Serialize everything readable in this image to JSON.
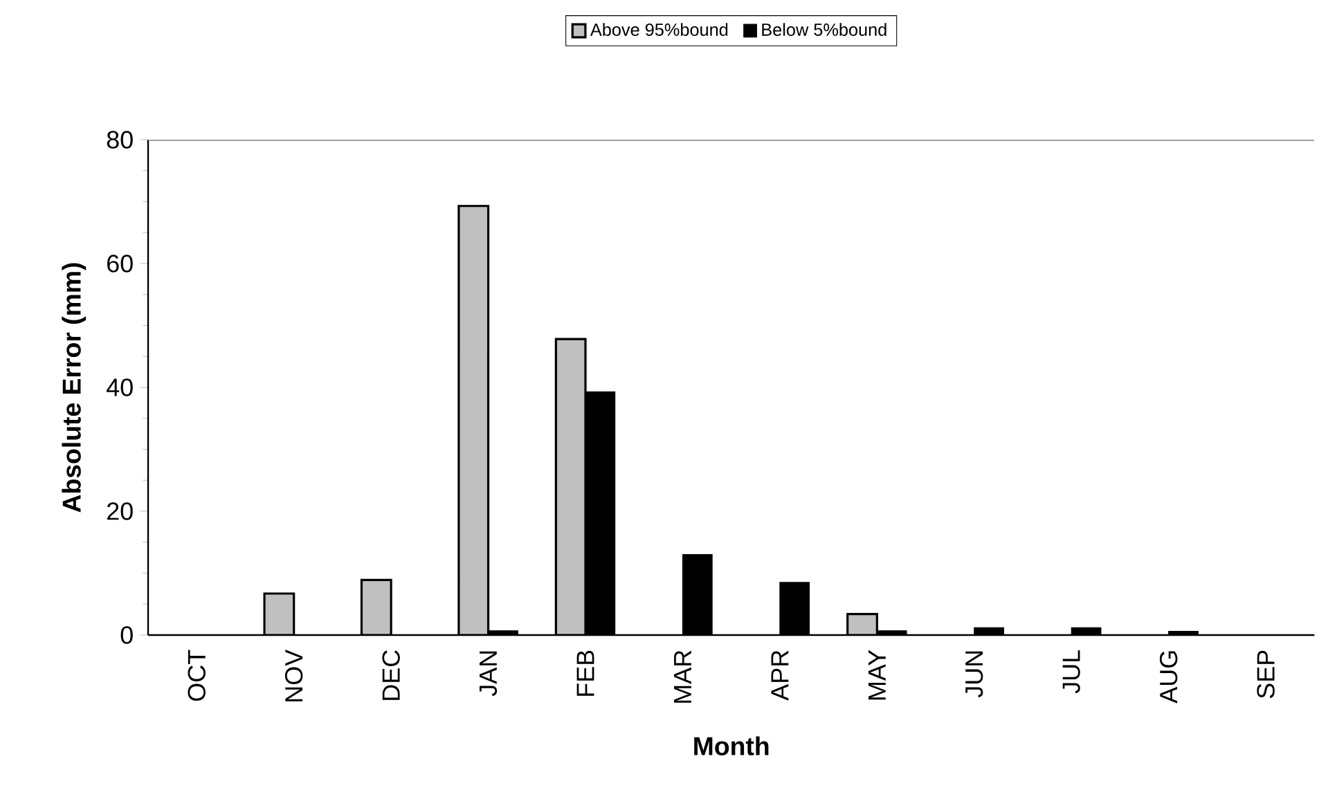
{
  "chart_data": {
    "type": "bar",
    "xlabel": "Month",
    "ylabel": "Absolute Error (mm)",
    "categories": [
      "OCT",
      "NOV",
      "DEC",
      "JAN",
      "FEB",
      "MAR",
      "APR",
      "MAY",
      "JUN",
      "JUL",
      "AUG",
      "SEP"
    ],
    "series": [
      {
        "name": "Above 95%bound",
        "color": "#c0c0c0",
        "values": [
          null,
          6.7,
          8.9,
          69.3,
          47.8,
          null,
          null,
          3.4,
          null,
          null,
          null,
          null
        ]
      },
      {
        "name": "Below 5%bound",
        "color": "#000000",
        "values": [
          null,
          null,
          null,
          0.7,
          39.3,
          13.0,
          8.5,
          0.7,
          1.2,
          1.2,
          0.6,
          null
        ]
      }
    ],
    "ylim": [
      0,
      80
    ],
    "yticks": [
      0,
      20,
      40,
      60,
      80
    ],
    "legend": "top"
  }
}
